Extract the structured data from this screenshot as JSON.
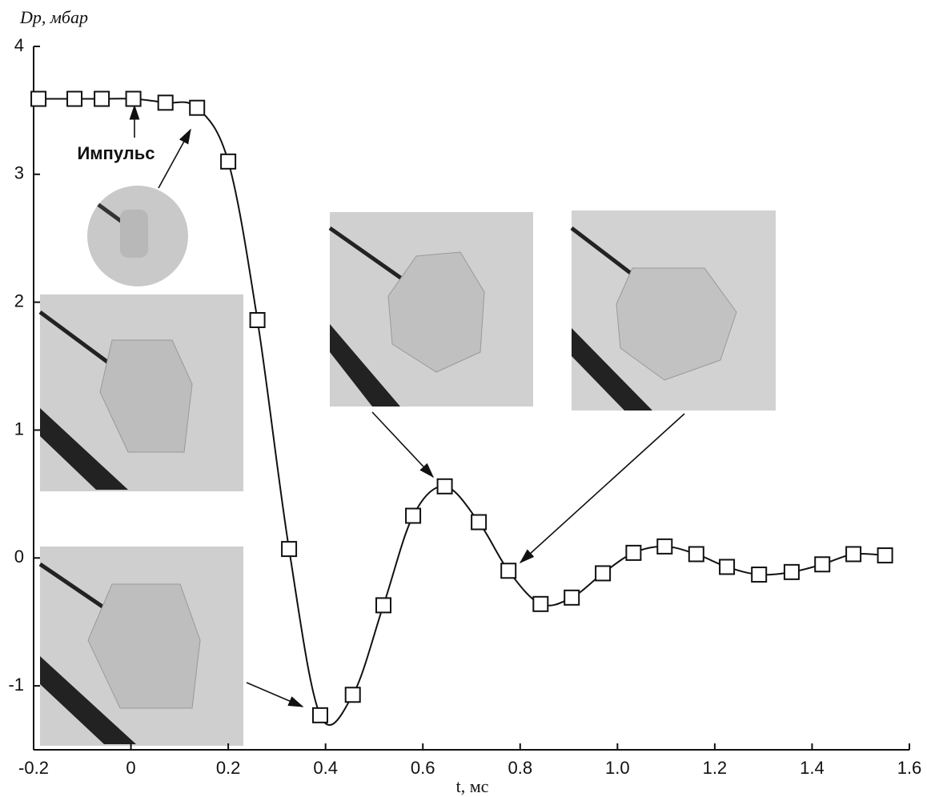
{
  "chart_data": {
    "type": "line",
    "y_label": "Dp, мбар",
    "x_label": "t, мс",
    "annotation": "Импульс",
    "x": [
      -0.19,
      -0.116,
      -0.06,
      0.005,
      0.071,
      0.136,
      0.2,
      0.26,
      0.325,
      0.389,
      0.456,
      0.519,
      0.58,
      0.645,
      0.715,
      0.776,
      0.842,
      0.906,
      0.97,
      1.033,
      1.097,
      1.162,
      1.225,
      1.291,
      1.358,
      1.421,
      1.485,
      1.55
    ],
    "series": [
      {
        "color": "#111111",
        "values": [
          3.59,
          3.59,
          3.59,
          3.59,
          3.56,
          3.52,
          3.1,
          1.86,
          0.07,
          -1.23,
          -1.07,
          -0.37,
          0.33,
          0.56,
          0.28,
          -0.1,
          -0.36,
          -0.31,
          -0.12,
          0.04,
          0.09,
          0.03,
          -0.07,
          -0.13,
          -0.11,
          -0.05,
          0.03,
          0.02
        ]
      }
    ],
    "xlim": [
      -0.2,
      1.6
    ],
    "ylim": [
      -1.5,
      4
    ],
    "xticks": [
      -0.2,
      0,
      0.2,
      0.4,
      0.6,
      0.8,
      {
        "value": 1,
        "label": "1.0"
      },
      1.2,
      1.4,
      1.6
    ],
    "yticks": [
      -1,
      0,
      1,
      2,
      3,
      4
    ]
  }
}
